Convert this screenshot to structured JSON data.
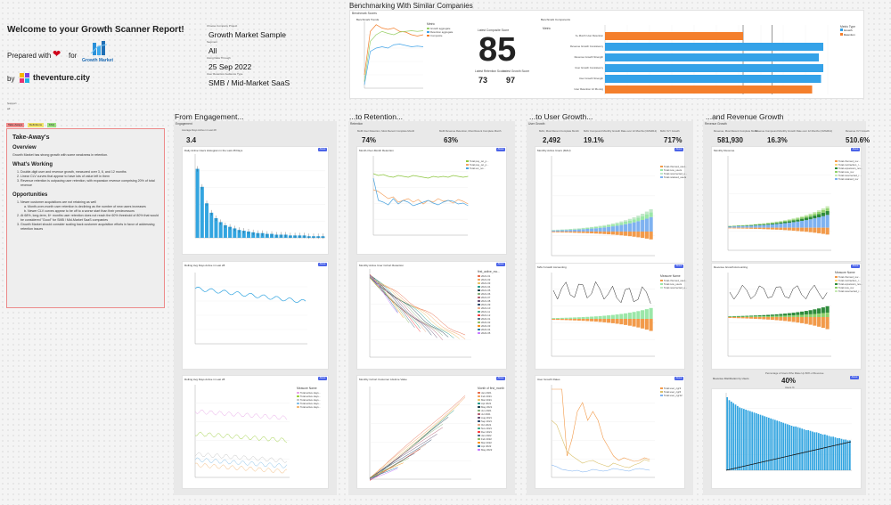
{
  "header": {
    "title": "Welcome to your Growth Scanner Report!",
    "prepared_with": "Prepared with",
    "for_text": "for",
    "by_text": "by",
    "growth_market_logo_text": "Growth Market",
    "venture_city": "theventure.city"
  },
  "filters": {
    "company_label": "Choose Company Project",
    "company_value": "Growth Market Sample",
    "segment_label": "Segment",
    "segment_value": "All",
    "date_label": "Using Data Through",
    "date_value": "25 Sep 2022",
    "cohort_label": "User Retention Audience Type",
    "cohort_value": "SMB / Mid-Market SaaS",
    "support_label": "Support",
    "support_value": "All"
  },
  "benchmark": {
    "title": "Benchmarking With Similar Companies",
    "section_label": "Benchmark Scores",
    "trends_title": "Benchmark Trends",
    "latest_score_label": "Latest Composite Score",
    "score": "85",
    "retention_label": "Latest Retention Score",
    "growth_label": "Latest Growth Score",
    "retention_score": "73",
    "growth_score": "97",
    "components_title": "Benchmark Components",
    "metric_header": "Metric",
    "legend_title": "Metric Type",
    "legend_items": [
      "Growth",
      "Retention"
    ],
    "trend_legend_title": "Metric",
    "trend_legend": [
      "Growth aggregate",
      "Retention aggregate",
      "Composite"
    ],
    "components": [
      {
        "label": "6+ Month User Retention",
        "value": 62,
        "color": "#f47f2c"
      },
      {
        "label": "Revenue Growth Consistency",
        "value": 98,
        "color": "#34a2e8"
      },
      {
        "label": "Revenue Growth Strength",
        "value": 96,
        "color": "#34a2e8"
      },
      {
        "label": "User Growth Consistency",
        "value": 98,
        "color": "#34a2e8"
      },
      {
        "label": "User Growth Strength",
        "value": 97,
        "color": "#34a2e8"
      },
      {
        "label": "User Retention 12 Mo Avg",
        "value": 93,
        "color": "#f47f2c"
      }
    ]
  },
  "tags": {
    "take_aways": "Take-Aways",
    "definitions": "Definitions",
    "faq": "FAQ"
  },
  "takeaways": {
    "title": "Take-Away's",
    "overview_h": "Overview",
    "overview": "Growth Market has strong growth with some weakness in retention.",
    "working_h": "What's Working",
    "working": [
      "Double-digit user and revenue growth, measured over 3, 6, and 12 months",
      "Linear CLV curves that appear to have lots of value left in them",
      "Revenue retention is outpacing user retention, with expansion revenue comprising 20% of total revenue"
    ],
    "opps_h": "Opportunities",
    "opp1": "Newer customer acquisitions are not retaining as well",
    "opp1_sub": [
      "Month-over-month user retention is declining as the number of new users increases",
      "Newer CLV curves appear to be off to a worse start than their predecessors"
    ],
    "opp2": "At 68%, long-term, 6+ months user retention does not reach the 60% threshold of 80% that would be considered \"Good\" for SMB / Mid-Market SaaS companies",
    "opp3": "Growth Market should consider scaling back customer acquisition efforts in favor of addressing retention issues"
  },
  "columns": {
    "engagement": {
      "title": "From Engagement...",
      "section": "Engagement",
      "kpi_label": "Average Days Active in Last 28",
      "kpi_value": "3.4",
      "chart1": "Daily Active Users Histogram in the Last 28 Days",
      "chart2": "Rolling Avg Days Active in Last 28",
      "chart3": "Rolling Avg Days Active in Last 28",
      "chart3_legend_title": "Measure Name",
      "chart3_legend": [
        "Total active days...",
        "Total active days...",
        "Total active days...",
        "Total active days...",
        "Total active days..."
      ],
      "x1": "Active Days Bin",
      "x2": "Window End Date",
      "x3": "Window End Date"
    },
    "retention": {
      "title": "...to Retention...",
      "section": "Retention",
      "kpi1_label": "MoM User Retention, Most Recent Complete Month",
      "kpi1_value": "74%",
      "kpi2_label": "MoM Revenue Retention, Most Recent Complete Month",
      "kpi2_value": "63%",
      "chart1": "Month-Over-Month Retention",
      "chart1_legend": [
        "Total pay_ret_p...",
        "Total pay_ret_p...",
        "Total usr_ret..."
      ],
      "chart2": "Monthly Active User Cohort Retention",
      "chart2_legend_title": "first_active_mo...",
      "cohorts": [
        "2021-01",
        "2021-02",
        "2021-03",
        "2021-04",
        "2021-05",
        "2021-06",
        "2021-07",
        "2021-08",
        "2021-09",
        "2021-10",
        "2021-11",
        "2021-12",
        "2022-01",
        "2022-02",
        "2022-03",
        "2022-04",
        "2022-05"
      ],
      "chart3": "Monthly Cohort Customer Lifetime Value",
      "chart3_legend_title": "Month of first_month",
      "clv_cohorts": [
        "Jan 2021",
        "Feb 2021",
        "Mar 2021",
        "Apr 2021",
        "May 2021",
        "Jun 2021",
        "Jul 2021",
        "Aug 2021",
        "Sep 2021",
        "Oct 2021",
        "Nov 2021",
        "Dec 2021",
        "Jan 2022",
        "Feb 2022",
        "Mar 2022",
        "Apr 2022",
        "May 2022"
      ],
      "x1": "activity_month",
      "x2": "Months Since First",
      "x3": "Months Since First"
    },
    "user_growth": {
      "title": "...to User Growth...",
      "section": "User Growth",
      "kpi1_label": "MAU, Most Recent Complete Month",
      "kpi1_value": "2,492",
      "kpi2_label": "MAU Compound Monthly Growth Rate over 12 Months (CMGR12)",
      "kpi2_value": "19.1%",
      "kpi3_label": "MAU YoY Growth",
      "kpi3_value": "717%",
      "chart1": "Monthly Active Users (MAU)",
      "chart1_legend": [
        "Total churned_user...",
        "Total new_users",
        "Total resurrected_u...",
        "Total retained_users"
      ],
      "chart2": "MAU Growth Accounting",
      "chart2_legend_title": "Measure Name",
      "chart2_legend": [
        "Total churned_user...",
        "Total new_users",
        "Total resurrected_u..."
      ],
      "chart3": "User Growth Rates",
      "chart3_legend": [
        "Total user_cgr3",
        "Total user_cgr6",
        "Total user_cgr12"
      ],
      "x_label": "Month"
    },
    "revenue": {
      "title": "...and Revenue Growth",
      "section": "Revenue Growth",
      "kpi1_label": "Revenue, Most Recent Complete Month",
      "kpi1_value": "581,930",
      "kpi2_label": "Revenue Compound Monthly Growth Rate over 12 Months (CMGR12)",
      "kpi2_value": "16.3%",
      "kpi3_label": "Revenue YoY Growth",
      "kpi3_value": "510.6%",
      "chart1": "Monthly Revenue",
      "chart1_legend": [
        "Total churned_rev...",
        "Total contraction_r...",
        "Total expansion_rev...",
        "Total new_rev",
        "Total resurrected_r...",
        "Total retained_rev"
      ],
      "chart2": "Revenue Growth Accounting",
      "chart2_legend_title": "Measure Name",
      "chart2_legend": [
        "Total churned_rev...",
        "Total contraction_r...",
        "Total expansion_rev...",
        "Total new_rev",
        "Total resurrected_r..."
      ],
      "chart3_kpi_label": "Percentage of Users Who Make Up 80% of Revenue",
      "chart3_kpi_value": "40%",
      "chart3_kpi_sub": "Users %",
      "chart3": "Revenue Distribution by Users",
      "x_label": "Month"
    }
  },
  "about_label": "About",
  "chart_data": [
    {
      "type": "bar",
      "title": "Daily Active Users Histogram in the Last 28 Days",
      "xlabel": "Active Days Bin",
      "ylabel": "Total Users",
      "values": [
        88,
        65,
        44,
        32,
        25,
        20,
        16,
        14,
        12,
        10,
        9,
        8,
        7,
        6,
        6,
        5,
        5,
        4,
        4,
        4,
        3,
        3,
        3,
        3,
        2,
        2,
        2,
        2
      ]
    },
    {
      "type": "bar",
      "title": "Benchmark Components",
      "categories": [
        "6+ Month User Retention",
        "Revenue Growth Consistency",
        "Revenue Growth Strength",
        "User Growth Consistency",
        "User Growth Strength",
        "User Retention 12 Mo Avg"
      ],
      "values": [
        62,
        98,
        96,
        98,
        97,
        93
      ],
      "xlim": [
        0,
        100
      ]
    },
    {
      "type": "bar",
      "title": "Revenue Distribution by Users",
      "values": [
        100,
        96,
        94,
        92,
        90,
        88,
        86,
        85,
        84,
        83,
        82,
        81,
        80,
        79,
        78,
        77,
        76,
        75,
        74,
        73,
        72,
        71,
        70,
        69,
        68,
        67,
        66,
        65,
        64,
        63,
        62,
        61,
        60,
        60,
        59,
        58,
        57,
        56,
        55,
        55,
        54,
        53,
        52,
        52,
        51,
        50,
        49,
        49,
        48,
        47,
        46,
        46,
        45,
        44,
        44,
        43,
        42,
        42,
        41,
        41
      ]
    }
  ]
}
